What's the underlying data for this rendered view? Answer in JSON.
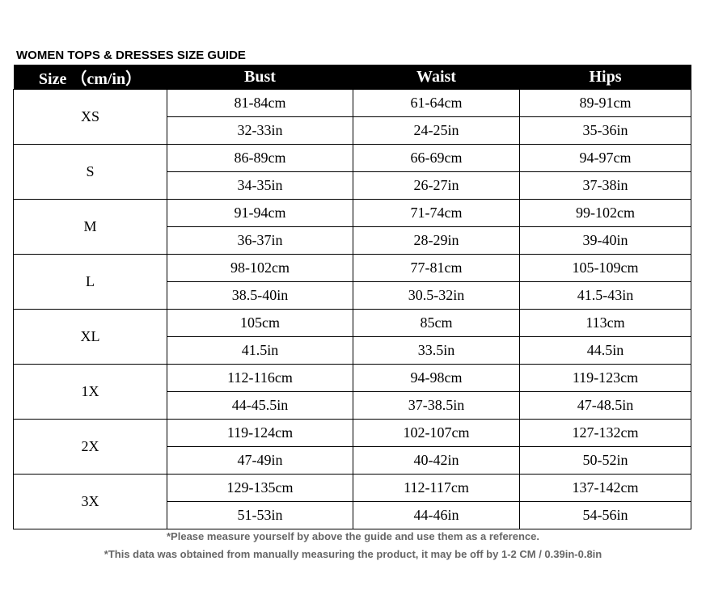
{
  "title": "WOMEN TOPS & DRESSES SIZE GUIDE",
  "headers": [
    "Size （cm/in）",
    "Bust",
    "Waist",
    "Hips"
  ],
  "rows": [
    {
      "size": "XS",
      "cm": [
        "81-84cm",
        "61-64cm",
        "89-91cm"
      ],
      "in": [
        "32-33in",
        "24-25in",
        "35-36in"
      ]
    },
    {
      "size": "S",
      "cm": [
        "86-89cm",
        "66-69cm",
        "94-97cm"
      ],
      "in": [
        "34-35in",
        "26-27in",
        "37-38in"
      ]
    },
    {
      "size": "M",
      "cm": [
        "91-94cm",
        "71-74cm",
        "99-102cm"
      ],
      "in": [
        "36-37in",
        "28-29in",
        "39-40in"
      ]
    },
    {
      "size": "L",
      "cm": [
        "98-102cm",
        "77-81cm",
        "105-109cm"
      ],
      "in": [
        "38.5-40in",
        "30.5-32in",
        "41.5-43in"
      ]
    },
    {
      "size": "XL",
      "cm": [
        "105cm",
        "85cm",
        "113cm"
      ],
      "in": [
        "41.5in",
        "33.5in",
        "44.5in"
      ]
    },
    {
      "size": "1X",
      "cm": [
        "112-116cm",
        "94-98cm",
        "119-123cm"
      ],
      "in": [
        "44-45.5in",
        "37-38.5in",
        "47-48.5in"
      ]
    },
    {
      "size": "2X",
      "cm": [
        "119-124cm",
        "102-107cm",
        "127-132cm"
      ],
      "in": [
        "47-49in",
        "40-42in",
        "50-52in"
      ]
    },
    {
      "size": "3X",
      "cm": [
        "129-135cm",
        "112-117cm",
        "137-142cm"
      ],
      "in": [
        "51-53in",
        "44-46in",
        "54-56in"
      ]
    }
  ],
  "notes": [
    "*Please measure yourself by above the guide and use them as a reference.",
    "*This data was obtained from manually measuring the product, it may be off by 1-2 CM / 0.39in-0.8in"
  ]
}
